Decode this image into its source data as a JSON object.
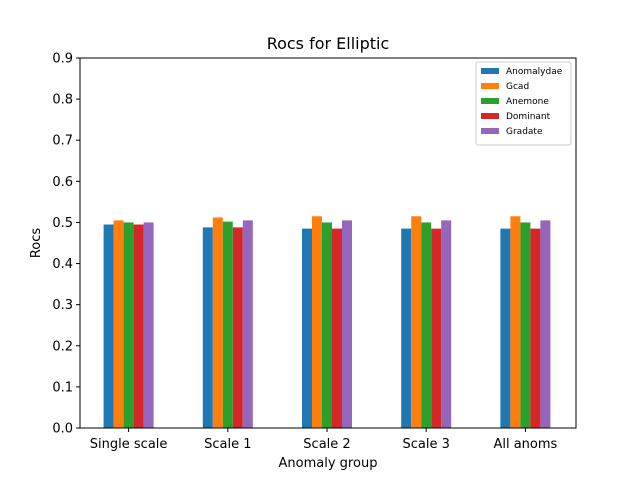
{
  "chart_data": {
    "type": "bar",
    "title": "Rocs for Elliptic",
    "xlabel": "Anomaly group",
    "ylabel": "Rocs",
    "ylim": [
      0,
      0.9
    ],
    "yticks": [
      "0.0",
      "0.1",
      "0.2",
      "0.3",
      "0.4",
      "0.5",
      "0.6",
      "0.7",
      "0.8",
      "0.9"
    ],
    "grid": false,
    "legend_position": "top-right",
    "categories": [
      "Single scale",
      "Scale 1",
      "Scale 2",
      "Scale 3",
      "All anoms"
    ],
    "series": [
      {
        "name": "Anomalydae",
        "color": "#1f77b4",
        "values": [
          0.495,
          0.488,
          0.485,
          0.485,
          0.485
        ]
      },
      {
        "name": "Gcad",
        "color": "#ff7f0e",
        "values": [
          0.505,
          0.512,
          0.515,
          0.515,
          0.515
        ]
      },
      {
        "name": "Anemone",
        "color": "#2ca02c",
        "values": [
          0.5,
          0.502,
          0.5,
          0.5,
          0.5
        ]
      },
      {
        "name": "Dominant",
        "color": "#d62728",
        "values": [
          0.495,
          0.488,
          0.485,
          0.485,
          0.485
        ]
      },
      {
        "name": "Gradate",
        "color": "#9467bd",
        "values": [
          0.5,
          0.505,
          0.505,
          0.505,
          0.505
        ]
      }
    ]
  }
}
